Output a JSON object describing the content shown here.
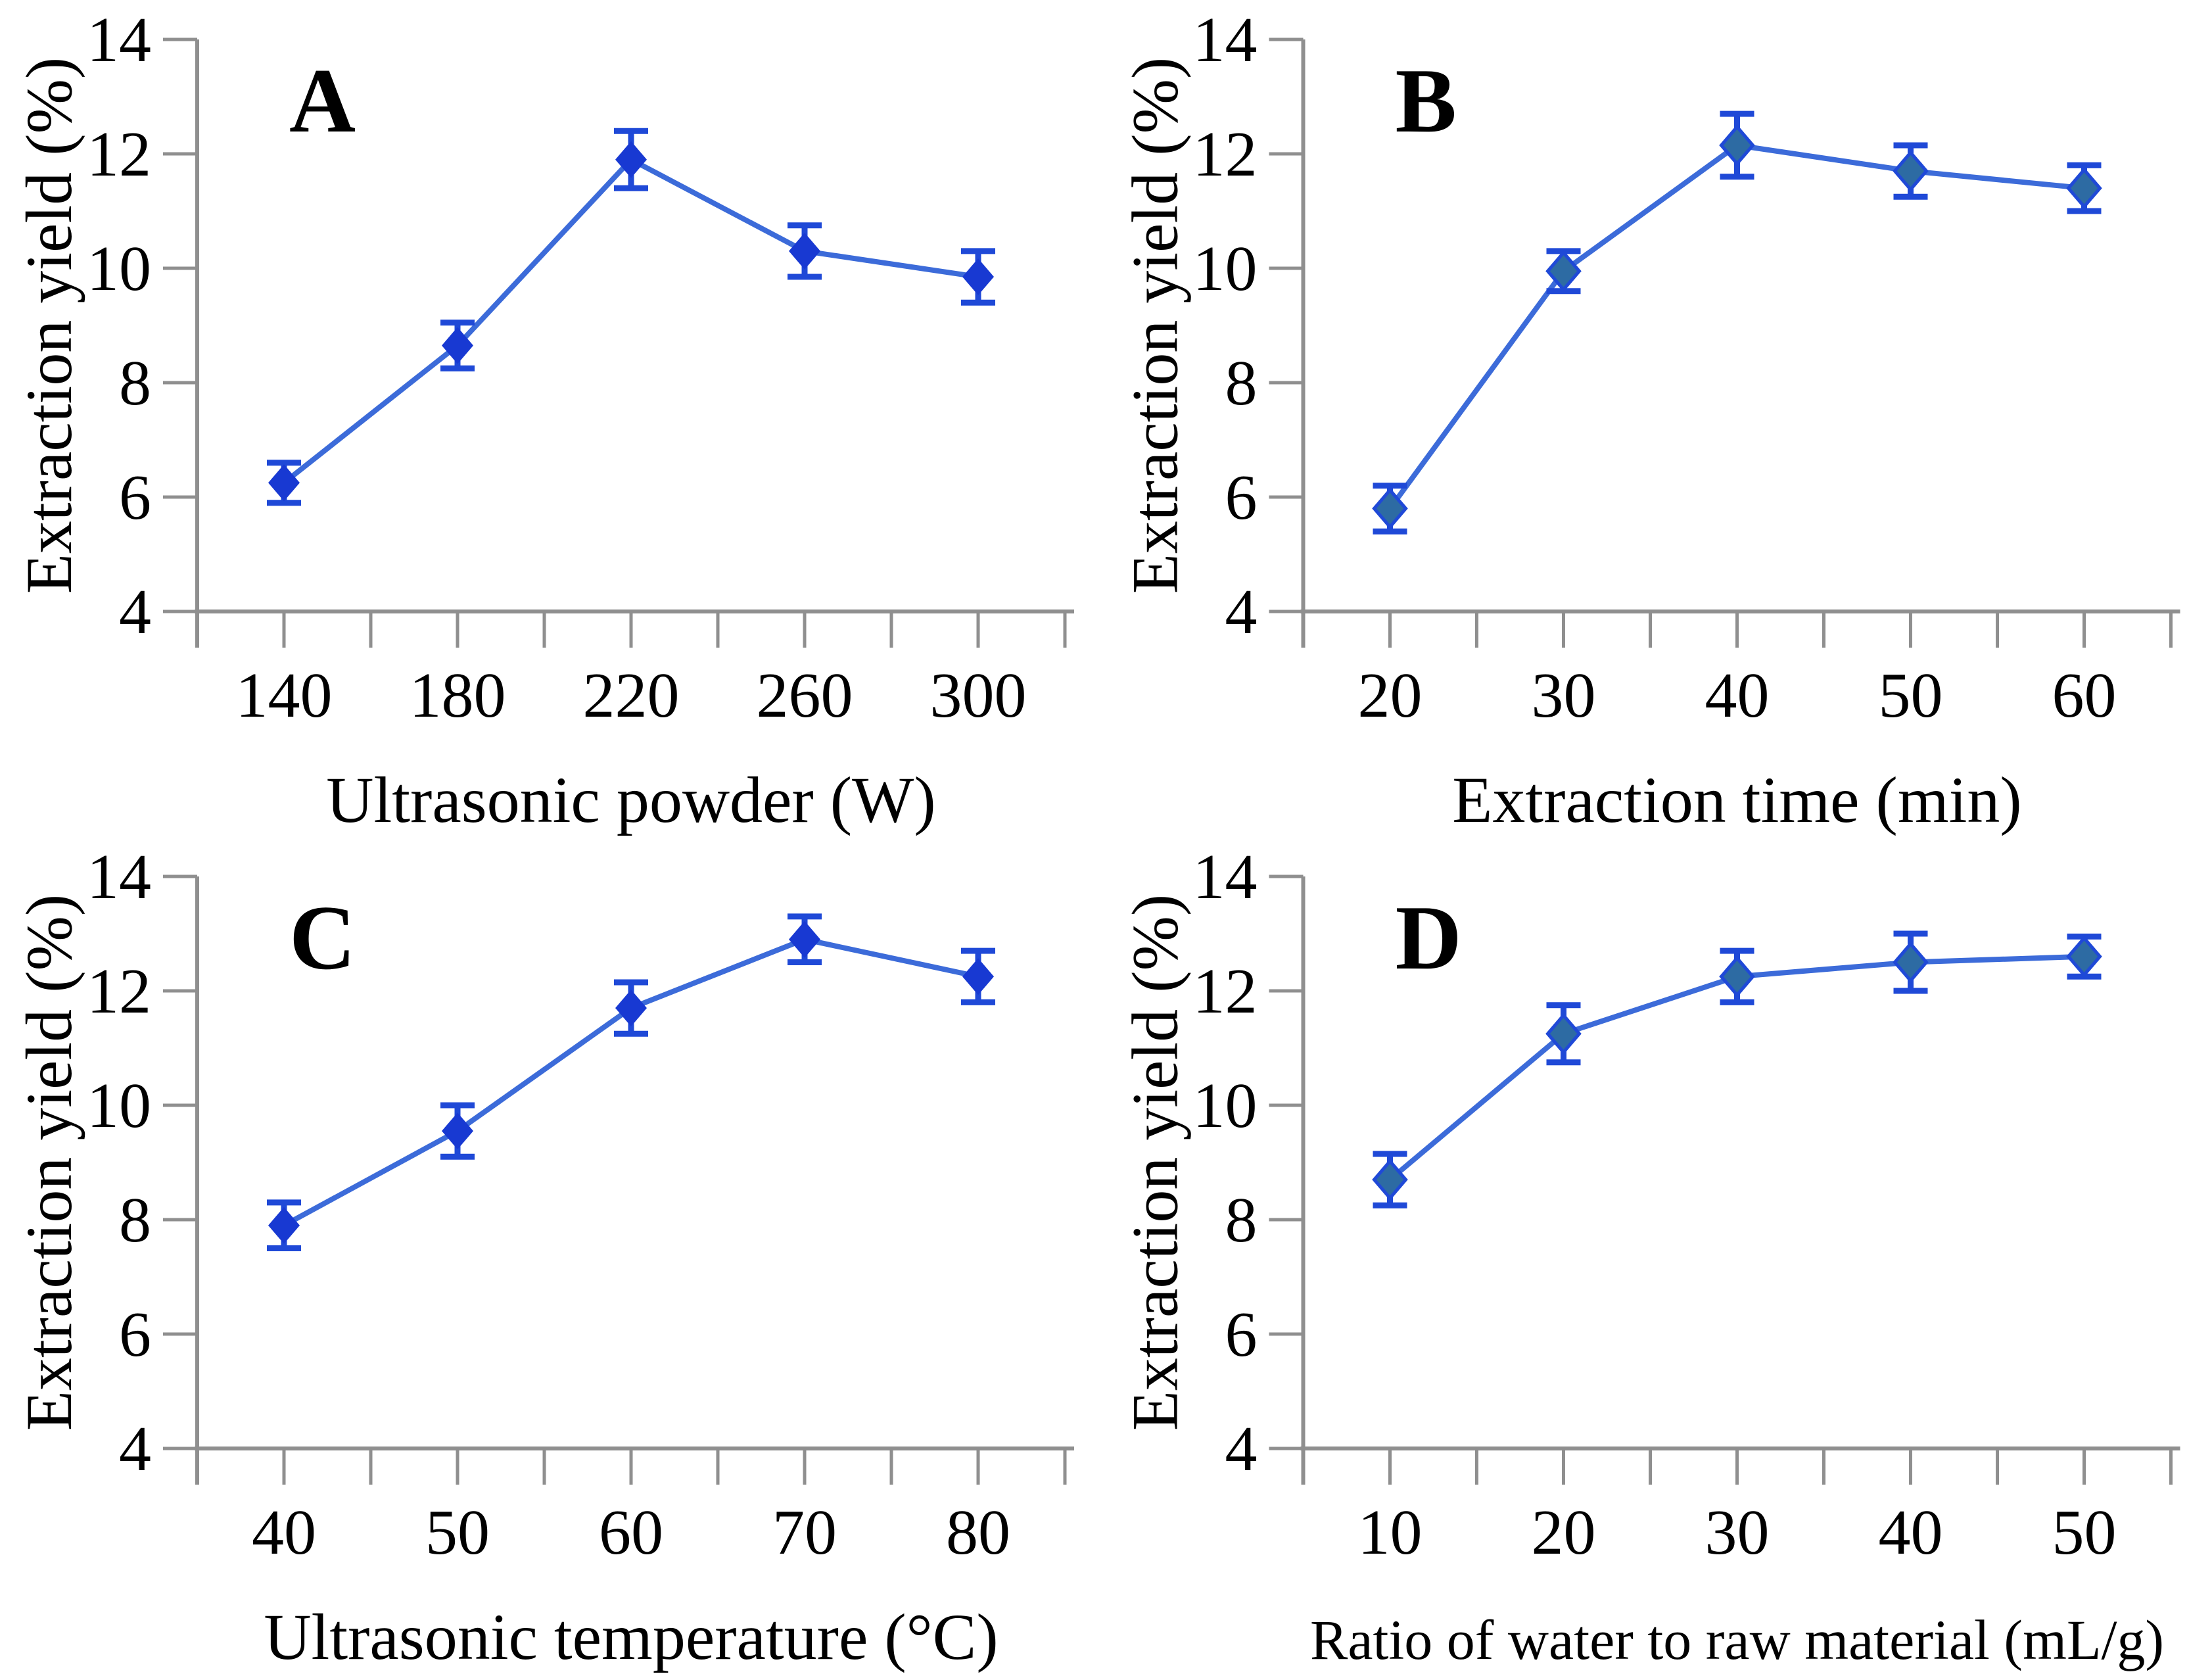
{
  "figure_background": "#FFFFFF",
  "axis_color": "#8F8F8F",
  "text_color": "#000000",
  "chart_data": [
    {
      "type": "line",
      "letter": "A",
      "title": "",
      "xlabel": "Ultrasonic powder (W)",
      "ylabel": "Extraction yield (%)",
      "categories": [
        "140",
        "180",
        "220",
        "260",
        "300"
      ],
      "values": [
        6.25,
        8.65,
        11.9,
        10.3,
        9.85
      ],
      "errors": [
        0.35,
        0.4,
        0.5,
        0.45,
        0.45
      ],
      "ylim": [
        4,
        14
      ],
      "yticks": [
        "4",
        "6",
        "8",
        "10",
        "12",
        "14"
      ],
      "grid": "off",
      "legend": "none",
      "line_color": "#3C6BD9",
      "marker_color": "#1839D2",
      "marker_stroke": "none",
      "error_color": "#1F49D7"
    },
    {
      "type": "line",
      "letter": "B",
      "title": "",
      "xlabel": "Extraction time (min)",
      "ylabel": "Extraction yield (%)",
      "categories": [
        "20",
        "30",
        "40",
        "50",
        "60"
      ],
      "values": [
        5.8,
        9.95,
        12.15,
        11.7,
        11.4
      ],
      "errors": [
        0.4,
        0.35,
        0.55,
        0.45,
        0.4
      ],
      "ylim": [
        4,
        14
      ],
      "yticks": [
        "4",
        "6",
        "8",
        "10",
        "12",
        "14"
      ],
      "grid": "off",
      "legend": "none",
      "line_color": "#3C6BD9",
      "marker_color": "#2D6BA3",
      "marker_stroke": "#1F49D7",
      "error_color": "#1F49D7"
    },
    {
      "type": "line",
      "letter": "C",
      "title": "",
      "xlabel": "Ultrasonic temperature (°C)",
      "ylabel": "Extraction yield (%)",
      "categories": [
        "40",
        "50",
        "60",
        "70",
        "80"
      ],
      "values": [
        7.9,
        9.55,
        11.7,
        12.9,
        12.25
      ],
      "errors": [
        0.4,
        0.45,
        0.45,
        0.4,
        0.45
      ],
      "ylim": [
        4,
        14
      ],
      "yticks": [
        "4",
        "6",
        "8",
        "10",
        "12",
        "14"
      ],
      "grid": "off",
      "legend": "none",
      "line_color": "#3C6BD9",
      "marker_color": "#1839D2",
      "marker_stroke": "none",
      "error_color": "#1F49D7"
    },
    {
      "type": "line",
      "letter": "D",
      "title": "",
      "xlabel": "Ratio of water to raw material (mL/g)",
      "ylabel": "Extraction yield (%)",
      "categories": [
        "10",
        "20",
        "30",
        "40",
        "50"
      ],
      "values": [
        8.7,
        11.25,
        12.25,
        12.5,
        12.6
      ],
      "errors": [
        0.45,
        0.5,
        0.45,
        0.5,
        0.35
      ],
      "ylim": [
        4,
        14
      ],
      "yticks": [
        "4",
        "6",
        "8",
        "10",
        "12",
        "14"
      ],
      "grid": "off",
      "legend": "none",
      "line_color": "#3C6BD9",
      "marker_color": "#2D6BA3",
      "marker_stroke": "#1F49D7",
      "error_color": "#1F49D7"
    }
  ]
}
